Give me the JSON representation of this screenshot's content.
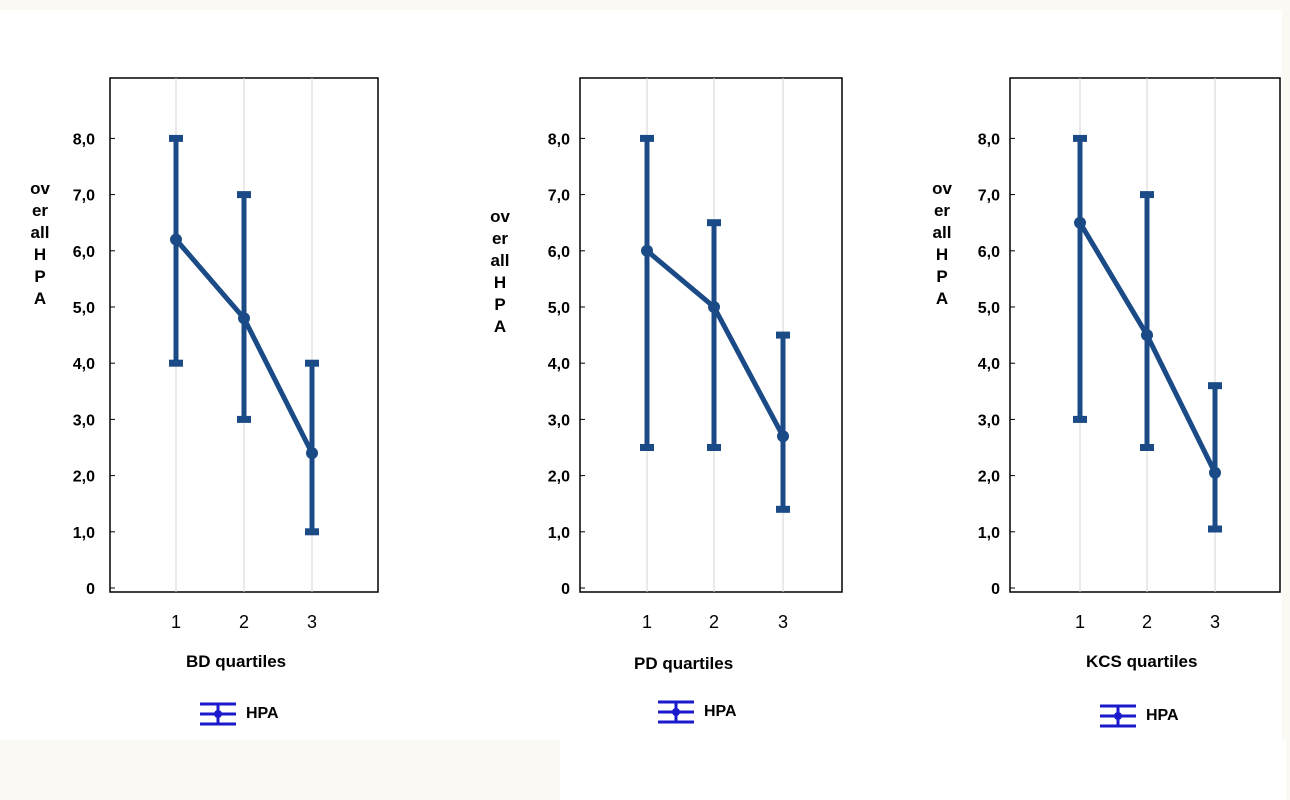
{
  "chart_data": [
    {
      "type": "line",
      "xlabel": "BD quartiles",
      "ylabel": "overall HPA",
      "categories": [
        "1",
        "2",
        "3"
      ],
      "yticks": [
        "8,0",
        "7,0",
        "6,0",
        "5,0",
        "4,0",
        "3,0",
        "2,0",
        "1,0",
        "0"
      ],
      "ylim": [
        0,
        9
      ],
      "grid": true,
      "series": [
        {
          "name": "HPA",
          "values": [
            6.2,
            4.8,
            2.4
          ],
          "lower": [
            4.0,
            3.0,
            1.0
          ],
          "upper": [
            8.0,
            7.0,
            4.0
          ]
        }
      ],
      "legend": "bottom",
      "color": "#1b4b86"
    },
    {
      "type": "line",
      "xlabel": "PD quartiles",
      "ylabel": "overall HPA",
      "categories": [
        "1",
        "2",
        "3"
      ],
      "yticks": [
        "8,0",
        "7,0",
        "6,0",
        "5,0",
        "4,0",
        "3,0",
        "2,0",
        "1,0",
        "0"
      ],
      "ylim": [
        0,
        9
      ],
      "grid": true,
      "series": [
        {
          "name": "HPA",
          "values": [
            6.0,
            5.0,
            2.7
          ],
          "lower": [
            2.5,
            2.5,
            1.4
          ],
          "upper": [
            8.0,
            6.5,
            4.5
          ]
        }
      ],
      "legend": "bottom",
      "color": "#1b4b86"
    },
    {
      "type": "line",
      "xlabel": "KCS quartiles",
      "ylabel": "overall HPA",
      "categories": [
        "1",
        "2",
        "3"
      ],
      "yticks": [
        "8,0",
        "7,0",
        "6,0",
        "5,0",
        "4,0",
        "3,0",
        "2,0",
        "1,0",
        "0"
      ],
      "ylim": [
        0,
        9
      ],
      "grid": true,
      "series": [
        {
          "name": "HPA",
          "values": [
            6.5,
            4.5,
            2.05
          ],
          "lower": [
            3.0,
            2.5,
            1.05
          ],
          "upper": [
            8.0,
            7.0,
            3.6
          ]
        }
      ],
      "legend": "bottom",
      "color": "#1b4b86"
    }
  ],
  "legend_icon_color": "#1a1acc"
}
